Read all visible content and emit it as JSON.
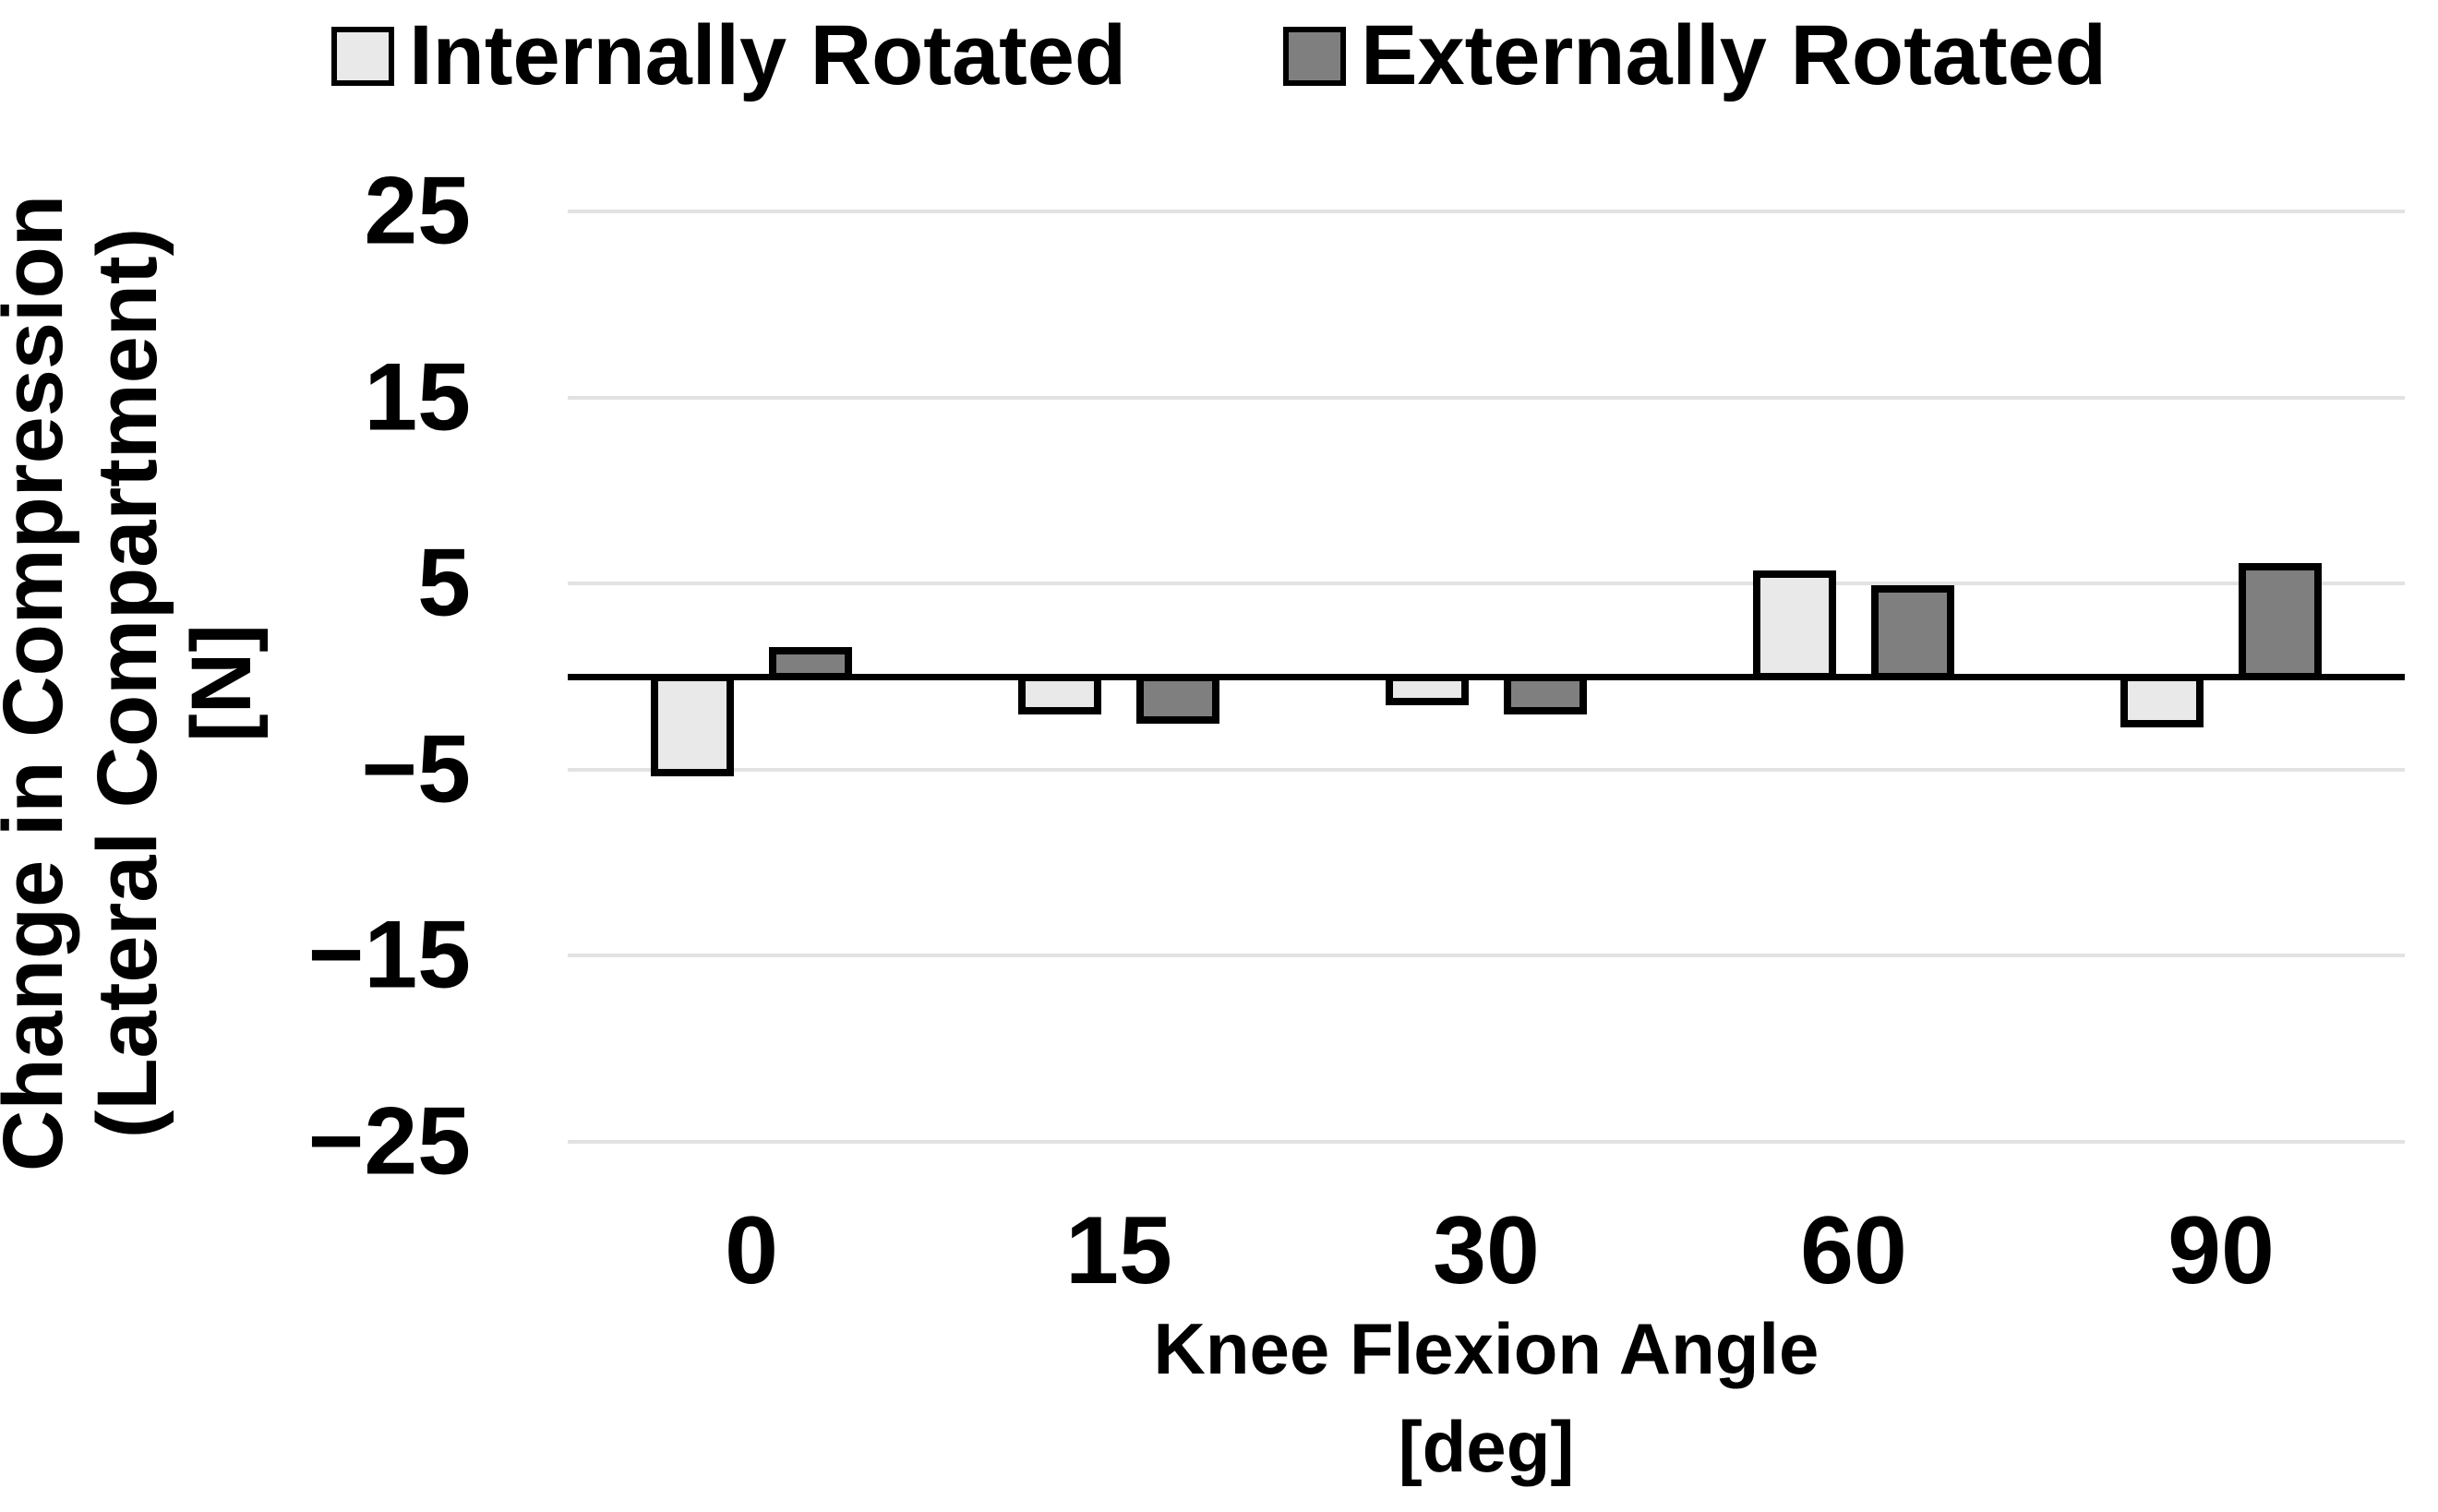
{
  "chart_data": {
    "type": "bar",
    "title": "",
    "categories": [
      "0",
      "15",
      "30",
      "60",
      "90"
    ],
    "series": [
      {
        "name": "Internally Rotated",
        "color": "#e9e9e9",
        "values": [
          -5.3,
          -2.0,
          -1.5,
          5.7,
          -2.7
        ]
      },
      {
        "name": "Externally Rotated",
        "color": "#7f7f7f",
        "values": [
          1.6,
          -2.5,
          -2.0,
          4.9,
          6.1
        ]
      }
    ],
    "xlabel_line1": "Knee Flexion Angle",
    "xlabel_line2": "[deg]",
    "ylabel_line1": "Change in Compression",
    "ylabel_line2": "(Lateral Compartment)",
    "ylabel_line3": "[N]",
    "yticks": [
      25,
      15,
      5,
      -5,
      -15,
      -25
    ],
    "ylim": [
      -25,
      25
    ],
    "grid": "horizontal",
    "legend_position": "top",
    "bar_border_color": "#000000",
    "gridline_color": "#e2e2e2",
    "axis_color": "#000000",
    "background_color": "#ffffff"
  }
}
